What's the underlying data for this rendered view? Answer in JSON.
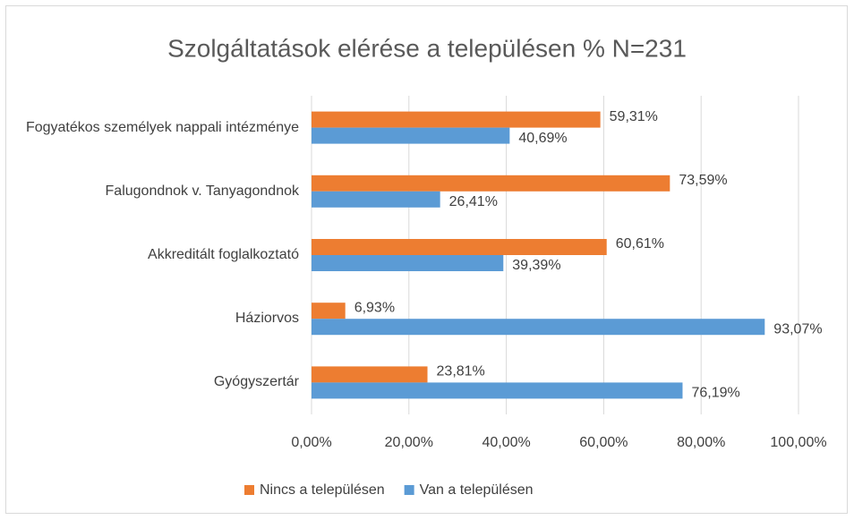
{
  "chart_data": {
    "type": "barh",
    "title": "Szolgáltatások elérése a településen % N=231",
    "categories": [
      "Fogyatékos személyek nappali intézménye",
      "Falugondnok v. Tanyagondnok",
      "Akkreditált foglalkoztató",
      "Háziorvos",
      "Gyógyszertár"
    ],
    "series": [
      {
        "name": "Nincs a településen",
        "color": "#ed7d31",
        "values": [
          59.31,
          73.59,
          60.61,
          6.93,
          23.81
        ],
        "value_labels": [
          "59,31%",
          "73,59%",
          "60,61%",
          "6,93%",
          "23,81%"
        ]
      },
      {
        "name": "Van a településen",
        "color": "#5b9bd5",
        "values": [
          40.69,
          26.41,
          39.39,
          93.07,
          76.19
        ],
        "value_labels": [
          "40,69%",
          "26,41%",
          "39,39%",
          "93,07%",
          "76,19%"
        ]
      }
    ],
    "xlim": [
      0,
      100
    ],
    "xticks": [
      {
        "value": 0,
        "label": "0,00%"
      },
      {
        "value": 20,
        "label": "20,00%"
      },
      {
        "value": 40,
        "label": "40,00%"
      },
      {
        "value": 60,
        "label": "60,00%"
      },
      {
        "value": 80,
        "label": "80,00%"
      },
      {
        "value": 100,
        "label": "100,00%"
      }
    ],
    "grid": true,
    "legend": "bottom"
  }
}
